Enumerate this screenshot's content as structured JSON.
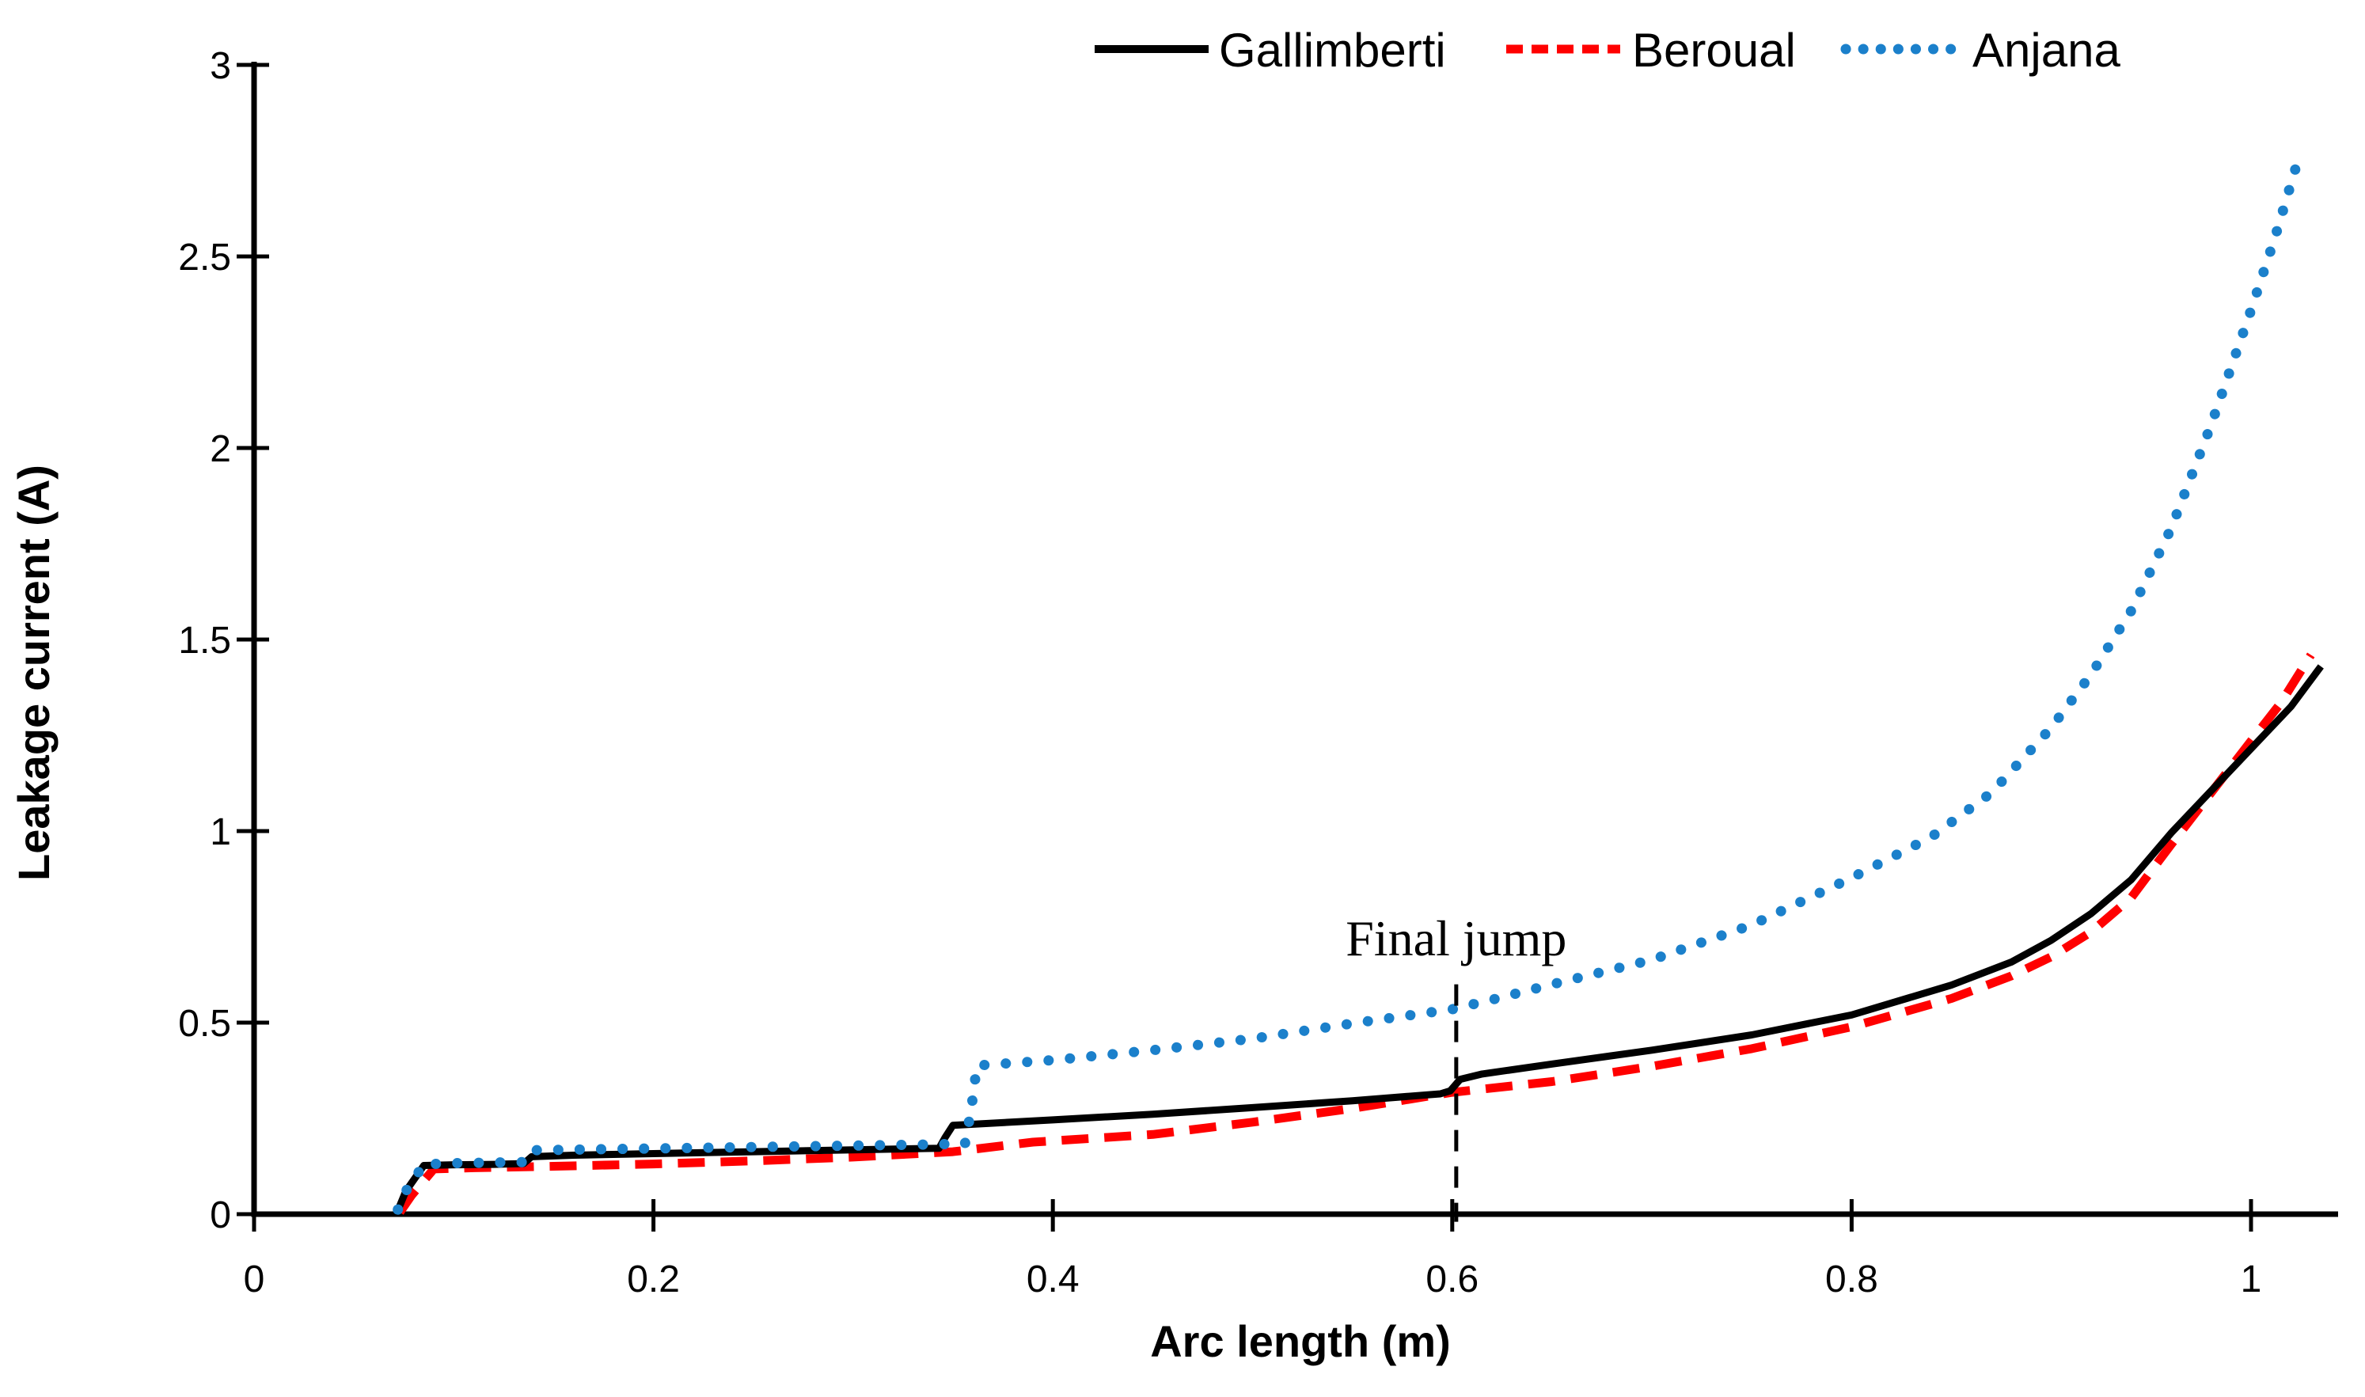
{
  "figure": {
    "background": "#ffffff",
    "text_color": "#000000",
    "axis_color": "#000000"
  },
  "chart_data": {
    "type": "line",
    "title": "",
    "xlabel": "Arc length (m)",
    "ylabel": "Leakage current (A)",
    "xlim": [
      0,
      1.05
    ],
    "ylim": [
      0,
      3
    ],
    "grid": false,
    "legend_position": "top",
    "x_ticks": {
      "values": [
        0,
        0.2,
        0.4,
        0.6,
        0.8,
        1
      ],
      "labels": [
        "0",
        "0.2",
        "0.4",
        "0.6",
        "0.8",
        "1"
      ]
    },
    "y_ticks": {
      "values": [
        0,
        0.5,
        1,
        1.5,
        2,
        2.5,
        3
      ],
      "labels": [
        "0",
        "0.5",
        "1",
        "1.5",
        "2",
        "2.5",
        "3"
      ]
    },
    "annotation": {
      "text": "Final jump",
      "x": 0.602,
      "text_y": 0.676,
      "line_top_y": 0.6,
      "line_bottom_y": -0.02
    },
    "series": [
      {
        "name": "Beroual",
        "color": "#ff0000",
        "style": "dashed",
        "width": 11,
        "points": [
          [
            0.073,
            0.005
          ],
          [
            0.079,
            0.05
          ],
          [
            0.09,
            0.118
          ],
          [
            0.11,
            0.121
          ],
          [
            0.15,
            0.125
          ],
          [
            0.2,
            0.131
          ],
          [
            0.25,
            0.139
          ],
          [
            0.3,
            0.149
          ],
          [
            0.35,
            0.163
          ],
          [
            0.39,
            0.188
          ],
          [
            0.45,
            0.208
          ],
          [
            0.5,
            0.24
          ],
          [
            0.55,
            0.276
          ],
          [
            0.6,
            0.318
          ],
          [
            0.65,
            0.346
          ],
          [
            0.7,
            0.386
          ],
          [
            0.75,
            0.432
          ],
          [
            0.8,
            0.489
          ],
          [
            0.85,
            0.563
          ],
          [
            0.88,
            0.622
          ],
          [
            0.9,
            0.672
          ],
          [
            0.92,
            0.737
          ],
          [
            0.94,
            0.826
          ],
          [
            0.96,
            0.965
          ],
          [
            0.98,
            1.1
          ],
          [
            1.0,
            1.235
          ],
          [
            1.015,
            1.335
          ],
          [
            1.03,
            1.46
          ]
        ]
      },
      {
        "name": "Gallimberti",
        "color": "#000000",
        "style": "solid",
        "width": 9,
        "points": [
          [
            0.072,
            0.01
          ],
          [
            0.076,
            0.06
          ],
          [
            0.085,
            0.127
          ],
          [
            0.1,
            0.129
          ],
          [
            0.12,
            0.13
          ],
          [
            0.135,
            0.132
          ],
          [
            0.139,
            0.15
          ],
          [
            0.16,
            0.154
          ],
          [
            0.2,
            0.158
          ],
          [
            0.25,
            0.163
          ],
          [
            0.3,
            0.168
          ],
          [
            0.343,
            0.172
          ],
          [
            0.346,
            0.2
          ],
          [
            0.35,
            0.232
          ],
          [
            0.4,
            0.246
          ],
          [
            0.45,
            0.261
          ],
          [
            0.5,
            0.278
          ],
          [
            0.55,
            0.296
          ],
          [
            0.594,
            0.314
          ],
          [
            0.599,
            0.322
          ],
          [
            0.604,
            0.352
          ],
          [
            0.615,
            0.366
          ],
          [
            0.65,
            0.392
          ],
          [
            0.7,
            0.428
          ],
          [
            0.75,
            0.468
          ],
          [
            0.8,
            0.52
          ],
          [
            0.85,
            0.598
          ],
          [
            0.88,
            0.658
          ],
          [
            0.9,
            0.715
          ],
          [
            0.92,
            0.785
          ],
          [
            0.94,
            0.873
          ],
          [
            0.96,
            0.995
          ],
          [
            0.98,
            1.105
          ],
          [
            1.0,
            1.215
          ],
          [
            1.02,
            1.325
          ],
          [
            1.035,
            1.43
          ]
        ]
      },
      {
        "name": "Anjana",
        "color": "#1b80cb",
        "style": "dotted",
        "width": 13,
        "points": [
          [
            0.072,
            0.012
          ],
          [
            0.076,
            0.06
          ],
          [
            0.085,
            0.13
          ],
          [
            0.1,
            0.133
          ],
          [
            0.135,
            0.136
          ],
          [
            0.139,
            0.167
          ],
          [
            0.18,
            0.17
          ],
          [
            0.22,
            0.173
          ],
          [
            0.26,
            0.176
          ],
          [
            0.3,
            0.179
          ],
          [
            0.34,
            0.182
          ],
          [
            0.356,
            0.184
          ],
          [
            0.359,
            0.27
          ],
          [
            0.362,
            0.388
          ],
          [
            0.4,
            0.402
          ],
          [
            0.45,
            0.428
          ],
          [
            0.5,
            0.458
          ],
          [
            0.55,
            0.498
          ],
          [
            0.6,
            0.535
          ],
          [
            0.62,
            0.56
          ],
          [
            0.65,
            0.6
          ],
          [
            0.7,
            0.664
          ],
          [
            0.75,
            0.755
          ],
          [
            0.8,
            0.878
          ],
          [
            0.84,
            0.985
          ],
          [
            0.87,
            1.1
          ],
          [
            0.9,
            1.27
          ],
          [
            0.92,
            1.41
          ],
          [
            0.94,
            1.575
          ],
          [
            0.96,
            1.79
          ],
          [
            0.98,
            2.06
          ],
          [
            1.0,
            2.36
          ],
          [
            1.012,
            2.55
          ],
          [
            1.024,
            2.76
          ]
        ]
      }
    ],
    "legend_items": [
      {
        "label": "Gallimberti",
        "style": "solid",
        "color": "#000000"
      },
      {
        "label": "Beroual",
        "style": "dashed",
        "color": "#ff0000"
      },
      {
        "label": "Anjana",
        "style": "dotted",
        "color": "#1b80cb"
      }
    ]
  }
}
